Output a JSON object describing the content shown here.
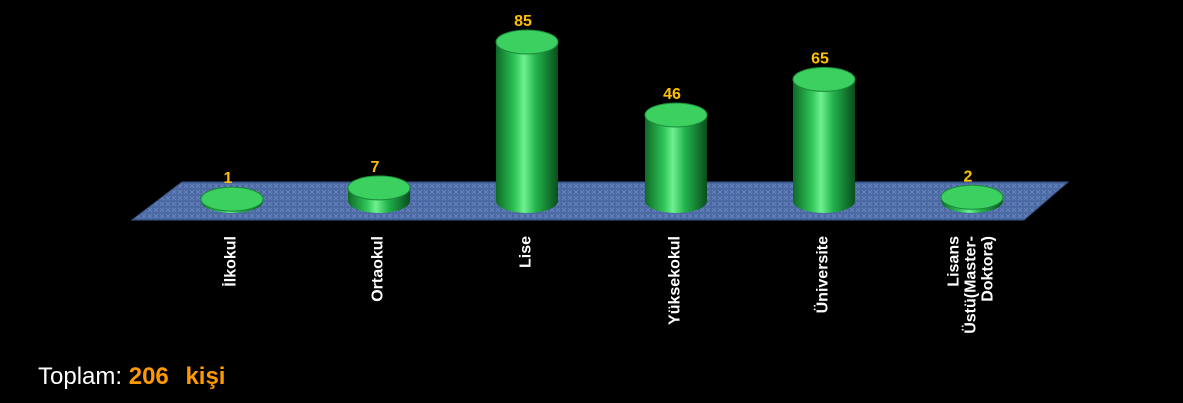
{
  "chart_data": {
    "type": "bar",
    "style": "3d-cylinder",
    "categories": [
      "İlkokul",
      "Ortaokul",
      "Lise",
      "Yüksekokul",
      "Üniversite",
      "Lisans Üstü(Master-Doktora)"
    ],
    "category_lines": [
      [
        "İlkokul"
      ],
      [
        "Ortaokul"
      ],
      [
        "Lise"
      ],
      [
        "Yüksekokul"
      ],
      [
        "Üniversite"
      ],
      [
        "Lisans",
        "Üstü(Master-",
        "Doktora)"
      ]
    ],
    "values": [
      1,
      7,
      85,
      46,
      65,
      2
    ],
    "value_labels": [
      "1",
      "7",
      "85",
      "46",
      "65",
      "2"
    ],
    "ylim": [
      0,
      85
    ],
    "grid": false,
    "legend": "none",
    "colors": {
      "bar": "#22b14c",
      "bar_dark": "#0b5e22",
      "bar_top": "#3bd05f",
      "floor": "#4f6fa8",
      "value_label": "#ffc000",
      "axis_label": "#ffffff",
      "background": "#000000"
    }
  },
  "summary": {
    "label": "Toplam:",
    "value": "206",
    "unit": "kişi"
  }
}
